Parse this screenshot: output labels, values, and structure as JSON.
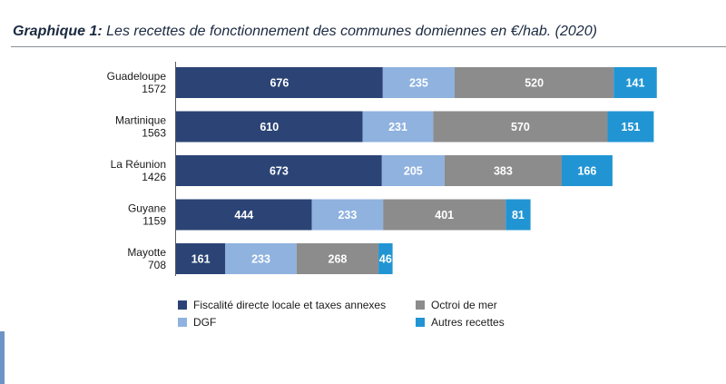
{
  "title": {
    "prefix": "Graphique 1:",
    "text": "Les recettes de fonctionnement des communes domiennes en €/hab. (2020)"
  },
  "chart_data": {
    "type": "bar",
    "orientation": "horizontal",
    "stacked": true,
    "title": "Graphique 1: Les recettes de fonctionnement des communes domiennes en €/hab. (2020)",
    "categories": [
      "Guadeloupe",
      "Martinique",
      "La Réunion",
      "Guyane",
      "Mayotte"
    ],
    "totals": [
      "1572",
      "1563",
      "1426",
      "1159",
      "708"
    ],
    "series": [
      {
        "name": "Fiscalité directe locale et taxes annexes",
        "color": "#2b4475",
        "values": [
          676,
          610,
          673,
          444,
          161
        ]
      },
      {
        "name": "DGF",
        "color": "#8fb2df",
        "values": [
          235,
          231,
          205,
          233,
          233
        ]
      },
      {
        "name": "Octroi de mer",
        "color": "#8c8c8c",
        "values": [
          520,
          570,
          383,
          401,
          268
        ]
      },
      {
        "name": "Autres recettes",
        "color": "#2195d3",
        "values": [
          141,
          151,
          166,
          81,
          46
        ]
      }
    ],
    "xlim": [
      0,
      1700
    ],
    "grid": false,
    "legend_position": "bottom"
  }
}
